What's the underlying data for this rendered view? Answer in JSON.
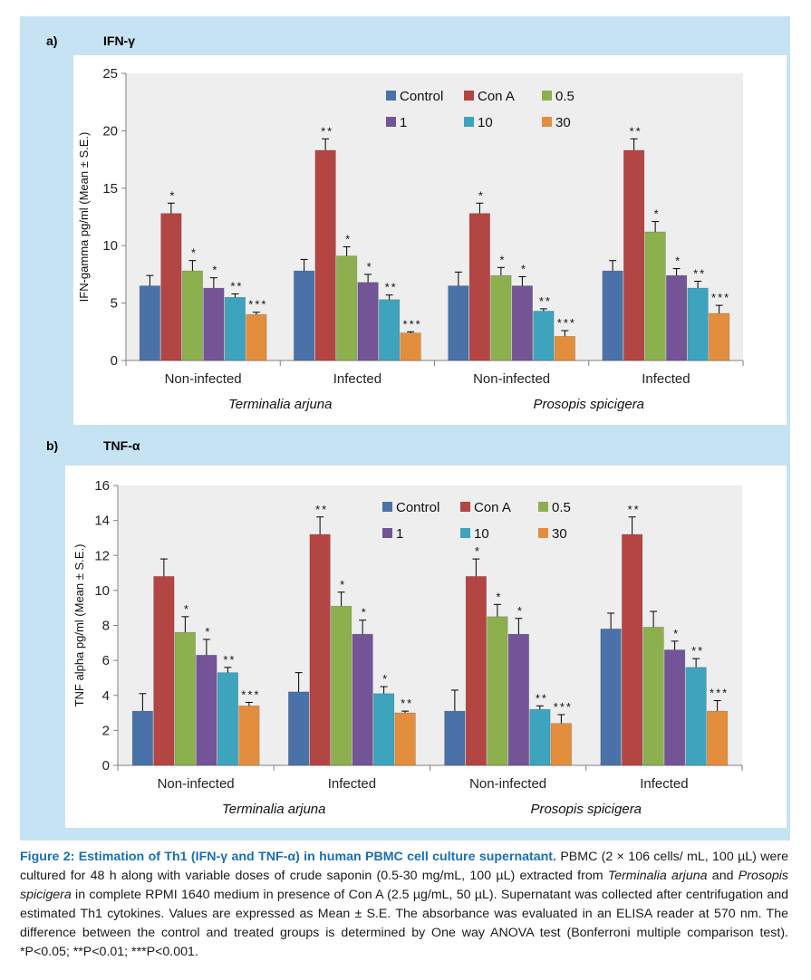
{
  "panels": [
    {
      "letter": "a)",
      "title": "IFN-γ",
      "chart_data": {
        "type": "bar",
        "ylabel": "IFN-gamma pg/ml (Mean ± S.E.)",
        "ylim": [
          0,
          25
        ],
        "yticks": [
          0,
          5,
          10,
          15,
          20,
          25
        ],
        "legend_placement": "top-center",
        "categories": [
          "Non-infected",
          "Infected",
          "Non-infected",
          "Infected"
        ],
        "category_groups": [
          {
            "label": "Terminalia arjuna",
            "categories": [
              0,
              1
            ]
          },
          {
            "label": "Prosopis spicigera",
            "categories": [
              2,
              3
            ]
          }
        ],
        "series": [
          {
            "name": "Control",
            "color": "#4a72a8",
            "values": [
              6.5,
              7.8,
              6.5,
              7.8
            ],
            "errors": [
              0.9,
              1.0,
              1.2,
              0.9
            ],
            "labels": [
              "",
              "",
              "",
              ""
            ]
          },
          {
            "name": "Con A",
            "color": "#b34543",
            "values": [
              12.8,
              18.3,
              12.8,
              18.3
            ],
            "errors": [
              0.9,
              1.0,
              0.9,
              1.0
            ],
            "labels": [
              "*",
              "**",
              "*",
              "**"
            ]
          },
          {
            "name": "0.5",
            "color": "#8db04f",
            "values": [
              7.8,
              9.1,
              7.4,
              11.2
            ],
            "errors": [
              0.9,
              0.8,
              0.7,
              0.9
            ],
            "labels": [
              "*",
              "*",
              "*",
              "*"
            ]
          },
          {
            "name": "1",
            "color": "#735496",
            "values": [
              6.3,
              6.8,
              6.5,
              7.4
            ],
            "errors": [
              0.9,
              0.7,
              0.8,
              0.6
            ],
            "labels": [
              "*",
              "*",
              "*",
              "*"
            ]
          },
          {
            "name": "10",
            "color": "#3ea3bc",
            "values": [
              5.5,
              5.3,
              4.3,
              6.3
            ],
            "errors": [
              0.3,
              0.4,
              0.2,
              0.6
            ],
            "labels": [
              "**",
              "**",
              "**",
              "**"
            ]
          },
          {
            "name": "30",
            "color": "#e38e3d",
            "values": [
              4.0,
              2.4,
              2.1,
              4.1
            ],
            "errors": [
              0.2,
              0.1,
              0.5,
              0.7
            ],
            "labels": [
              "***",
              "***",
              "***",
              "***"
            ]
          }
        ]
      }
    },
    {
      "letter": "b)",
      "title": "TNF-α",
      "chart_data": {
        "type": "bar",
        "ylabel": "TNF alpha  pg/ml (Mean ± S.E.)",
        "ylim": [
          0,
          16
        ],
        "yticks": [
          0,
          2,
          4,
          6,
          8,
          10,
          12,
          14,
          16
        ],
        "legend_placement": "top-right",
        "categories": [
          "Non-infected",
          "Infected",
          "Non-infected",
          "Infected"
        ],
        "category_groups": [
          {
            "label": "Terminalia arjuna",
            "categories": [
              0,
              1
            ]
          },
          {
            "label": "Prosopis spicigera",
            "categories": [
              2,
              3
            ]
          }
        ],
        "series": [
          {
            "name": "Control",
            "color": "#4a72a8",
            "values": [
              3.1,
              4.2,
              3.1,
              7.8
            ],
            "errors": [
              1.0,
              1.1,
              1.2,
              0.9
            ],
            "labels": [
              "",
              "",
              "",
              ""
            ]
          },
          {
            "name": "Con A",
            "color": "#b34543",
            "values": [
              10.8,
              13.2,
              10.8,
              13.2
            ],
            "errors": [
              1.0,
              1.0,
              1.0,
              1.0
            ],
            "labels": [
              "",
              "**",
              "*",
              "**"
            ]
          },
          {
            "name": "0.5",
            "color": "#8db04f",
            "values": [
              7.6,
              9.1,
              8.5,
              7.9
            ],
            "errors": [
              0.9,
              0.8,
              0.7,
              0.9
            ],
            "labels": [
              "*",
              "*",
              "*",
              ""
            ]
          },
          {
            "name": "1",
            "color": "#735496",
            "values": [
              6.3,
              7.5,
              7.5,
              6.6
            ],
            "errors": [
              0.9,
              0.8,
              0.9,
              0.5
            ],
            "labels": [
              "*",
              "*",
              "*",
              "*"
            ]
          },
          {
            "name": "10",
            "color": "#3ea3bc",
            "values": [
              5.3,
              4.1,
              3.2,
              5.6
            ],
            "errors": [
              0.3,
              0.4,
              0.2,
              0.5
            ],
            "labels": [
              "**",
              "*",
              "**",
              "**"
            ]
          },
          {
            "name": "30",
            "color": "#e38e3d",
            "values": [
              3.4,
              3.0,
              2.4,
              3.1
            ],
            "errors": [
              0.2,
              0.1,
              0.5,
              0.6
            ],
            "labels": [
              "***",
              "**",
              "***",
              "***"
            ]
          }
        ]
      }
    }
  ],
  "caption": {
    "title": "Figure 2: Estimation of Th1 (IFN-γ and TNF-α) in human PBMC cell culture supernatant.",
    "body_1": " PBMC (2 × 106 cells/ mL, 100 µL) were cultured for 48 h along with variable doses of crude saponin (0.5-30 mg/mL, 100 µL) extracted from ",
    "italic_1": "Terminalia arjuna",
    "body_2": " and ",
    "italic_2": "Prosopis spicigera",
    "body_3": " in complete RPMI 1640 medium in presence of Con A (2.5 µg/mL, 50 µL). Supernatant was collected after centrifugation and estimated Th1 cytokines. Values are expressed as Mean ± S.E. The absorbance was evaluated in an ELISA reader at 570 nm. The difference between the control and treated groups is determined by One way ANOVA test (Bonferroni multiple comparison test). *P<0.05; **P<0.01; ***P<0.001."
  }
}
